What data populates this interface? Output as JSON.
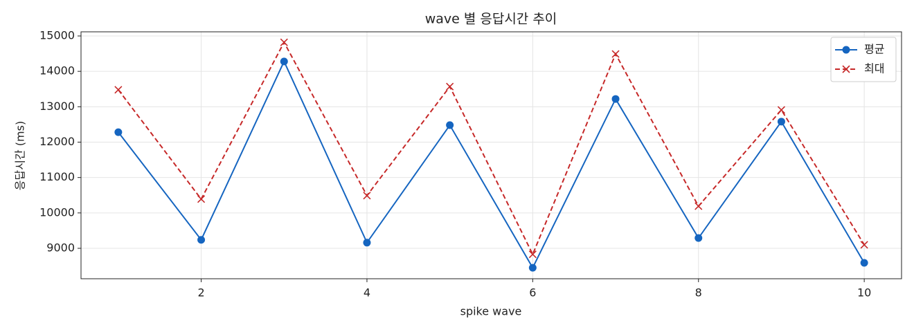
{
  "chart_data": {
    "type": "line",
    "title": "wave 별 응답시간 추이",
    "x_label": "spike wave",
    "y_label": "응답시간 (ms)",
    "x": [
      1,
      2,
      3,
      4,
      5,
      6,
      7,
      8,
      9,
      10
    ],
    "series": [
      {
        "name": "평균",
        "color": "#1565c0",
        "marker": "o",
        "linestyle": "solid",
        "values": [
          12280,
          9240,
          14280,
          9160,
          12480,
          8450,
          13220,
          9290,
          12580,
          8590
        ]
      },
      {
        "name": "최대",
        "color": "#c62828",
        "marker": "x",
        "linestyle": "dashed",
        "values": [
          13480,
          10390,
          14820,
          10490,
          13570,
          8830,
          14490,
          10190,
          12910,
          9100
        ]
      }
    ],
    "xlim": [
      0.55,
      10.45
    ],
    "ylim": [
      8140,
      15117
    ],
    "xticks": [
      2,
      4,
      6,
      8,
      10
    ],
    "yticks": [
      9000,
      10000,
      11000,
      12000,
      13000,
      14000,
      15000
    ],
    "grid": true,
    "legend": "upper right"
  }
}
